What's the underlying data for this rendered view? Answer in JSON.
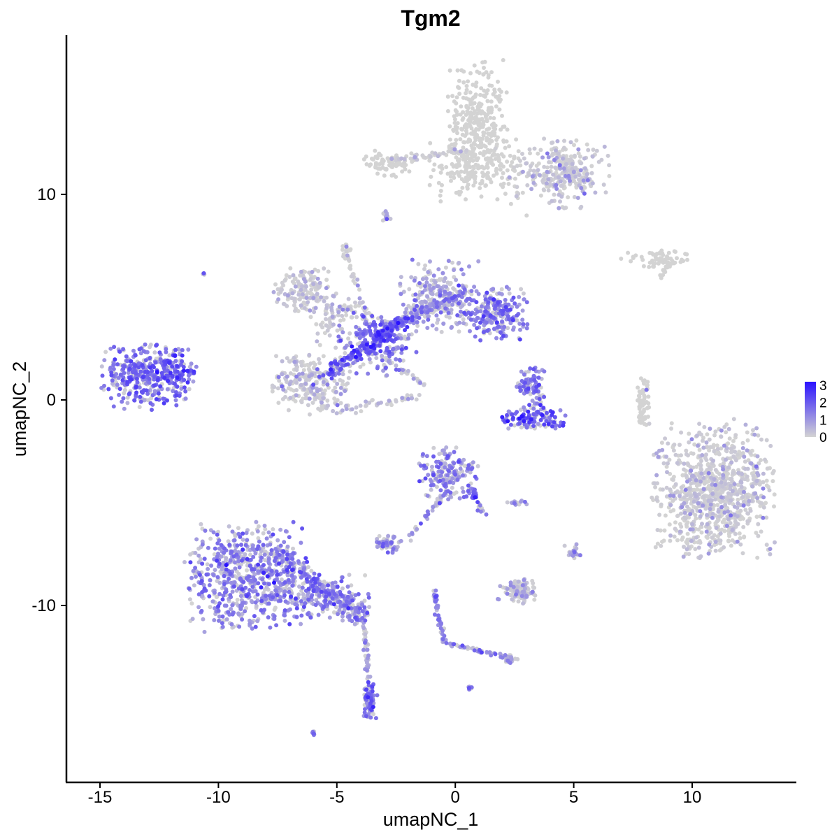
{
  "chart_data": {
    "type": "scatter",
    "title": "Tgm2",
    "xlabel": "umapNC_1",
    "ylabel": "umapNC_2",
    "xlim": [
      -16.5,
      14.5
    ],
    "ylim": [
      -18.5,
      17.5
    ],
    "x_ticks": [
      -15,
      -10,
      -5,
      0,
      5,
      10
    ],
    "x_tick_labels": [
      "-15",
      "-10",
      "-5",
      "0",
      "5",
      "10"
    ],
    "y_ticks": [
      -10,
      0,
      10
    ],
    "y_tick_labels": [
      "-10",
      "0",
      "10"
    ],
    "grid": false,
    "legend_position": "right",
    "color_scale": {
      "low": "#d3d3d3",
      "high": "#2a12ff",
      "min": 0,
      "max": 3.2,
      "labels": [
        "3",
        "2",
        "1",
        "0"
      ],
      "label_values": [
        3,
        2,
        1,
        0
      ]
    },
    "clusters": [
      {
        "cx": 1.0,
        "cy": 13.6,
        "sx": 0.6,
        "sy": 1.4,
        "n": 300,
        "expr": 0.0
      },
      {
        "cx": 4.4,
        "cy": 11.0,
        "sx": 1.0,
        "sy": 0.8,
        "n": 240,
        "expr": 0.05
      },
      {
        "cx": 0.8,
        "cy": 11.2,
        "sx": 0.9,
        "sy": 0.7,
        "n": 160,
        "expr": 0.0
      },
      {
        "cx": -2.8,
        "cy": 11.5,
        "sx": 0.5,
        "sy": 0.3,
        "n": 70,
        "expr": 0.0
      },
      {
        "cx": -6.4,
        "cy": 5.4,
        "sx": 0.6,
        "sy": 0.5,
        "n": 140,
        "expr": 0.05
      },
      {
        "cx": -5.2,
        "cy": 4.0,
        "sx": 0.6,
        "sy": 0.7,
        "n": 90,
        "expr": 0.25
      },
      {
        "cx": -6.1,
        "cy": 0.8,
        "sx": 0.8,
        "sy": 0.7,
        "n": 240,
        "expr": 0.15
      },
      {
        "cx": -3.2,
        "cy": 2.8,
        "sx": 0.8,
        "sy": 0.8,
        "n": 200,
        "expr": 1.4
      },
      {
        "cx": -0.8,
        "cy": 5.0,
        "sx": 0.7,
        "sy": 0.8,
        "n": 200,
        "expr": 0.8
      },
      {
        "cx": 1.6,
        "cy": 4.2,
        "sx": 0.7,
        "sy": 0.6,
        "n": 240,
        "expr": 1.4
      },
      {
        "cx": -13.0,
        "cy": 1.2,
        "sx": 0.9,
        "sy": 0.7,
        "n": 360,
        "expr": 1.6
      },
      {
        "cx": -11.7,
        "cy": 1.5,
        "sx": 0.4,
        "sy": 0.5,
        "n": 70,
        "expr": 1.8
      },
      {
        "cx": 3.2,
        "cy": 0.6,
        "sx": 0.3,
        "sy": 0.5,
        "n": 90,
        "expr": 1.5
      },
      {
        "cx": 3.2,
        "cy": -0.9,
        "sx": 0.7,
        "sy": 0.25,
        "n": 120,
        "expr": 1.8
      },
      {
        "cx": -0.3,
        "cy": -3.6,
        "sx": 0.6,
        "sy": 0.6,
        "n": 170,
        "expr": 1.3
      },
      {
        "cx": 10.9,
        "cy": -4.4,
        "sx": 1.2,
        "sy": 1.5,
        "n": 900,
        "expr": 0.02
      },
      {
        "cx": 8.0,
        "cy": -0.1,
        "sx": 0.15,
        "sy": 0.6,
        "n": 40,
        "expr": 0.0
      },
      {
        "cx": 8.6,
        "cy": 6.9,
        "sx": 0.7,
        "sy": 0.2,
        "n": 60,
        "expr": 0.0
      },
      {
        "cx": -8.8,
        "cy": -8.5,
        "sx": 1.2,
        "sy": 1.2,
        "n": 650,
        "expr": 1.3
      },
      {
        "cx": -5.8,
        "cy": -9.5,
        "sx": 0.9,
        "sy": 0.5,
        "n": 160,
        "expr": 1.1
      },
      {
        "cx": -4.3,
        "cy": -10.1,
        "sx": 0.4,
        "sy": 0.3,
        "n": 40,
        "expr": 0.5
      },
      {
        "cx": -3.6,
        "cy": -14.6,
        "sx": 0.15,
        "sy": 0.5,
        "n": 80,
        "expr": 1.6
      },
      {
        "cx": -2.8,
        "cy": -7.0,
        "sx": 0.3,
        "sy": 0.2,
        "n": 50,
        "expr": 1.0
      },
      {
        "cx": 2.7,
        "cy": -9.3,
        "sx": 0.4,
        "sy": 0.25,
        "n": 90,
        "expr": 0.4
      },
      {
        "cx": 2.6,
        "cy": -5.0,
        "sx": 0.25,
        "sy": 0.05,
        "n": 15,
        "expr": 0.7
      },
      {
        "cx": 5.0,
        "cy": -7.4,
        "sx": 0.2,
        "sy": 0.2,
        "n": 20,
        "expr": 0.8
      },
      {
        "cx": 2.3,
        "cy": -12.6,
        "sx": 0.2,
        "sy": 0.1,
        "n": 20,
        "expr": 1.0
      },
      {
        "cx": 0.6,
        "cy": -14.0,
        "sx": 0.05,
        "sy": 0.05,
        "n": 8,
        "expr": 1.3
      },
      {
        "cx": -6.0,
        "cy": -16.2,
        "sx": 0.05,
        "sy": 0.05,
        "n": 8,
        "expr": 1.5
      },
      {
        "cx": -10.6,
        "cy": 6.1,
        "sx": 0.03,
        "sy": 0.03,
        "n": 4,
        "expr": 0.8
      },
      {
        "cx": -2.9,
        "cy": 8.9,
        "sx": 0.1,
        "sy": 0.2,
        "n": 15,
        "expr": 0.5
      },
      {
        "cx": -4.6,
        "cy": 7.4,
        "sx": 0.1,
        "sy": 0.1,
        "n": 10,
        "expr": 0.0
      }
    ],
    "branches": [
      {
        "from": [
          -5.5,
          1.2
        ],
        "to": [
          -2.0,
          4.0
        ],
        "n": 220,
        "spread": 0.35,
        "expr": 2.0
      },
      {
        "from": [
          -2.0,
          4.0
        ],
        "to": [
          0.4,
          5.2
        ],
        "n": 120,
        "spread": 0.4,
        "expr": 1.2
      },
      {
        "from": [
          -4.7,
          7.4
        ],
        "to": [
          -3.6,
          3.5
        ],
        "n": 40,
        "spread": 0.15,
        "expr": 0.1
      },
      {
        "from": [
          -3.2,
          2.2
        ],
        "to": [
          -1.3,
          0.7
        ],
        "n": 30,
        "spread": 0.08,
        "expr": 0.3
      },
      {
        "from": [
          0.6,
          12.2
        ],
        "to": [
          -2.7,
          11.6
        ],
        "n": 50,
        "spread": 0.15,
        "expr": 0.05
      },
      {
        "from": [
          4.2,
          12.0
        ],
        "to": [
          5.5,
          10.5
        ],
        "n": 80,
        "spread": 0.35,
        "expr": 0.05
      },
      {
        "from": [
          -7.3,
          -7.6
        ],
        "to": [
          -3.9,
          -10.6
        ],
        "n": 180,
        "spread": 0.45,
        "expr": 1.4
      },
      {
        "from": [
          -3.9,
          -10.6
        ],
        "to": [
          -3.6,
          -14.0
        ],
        "n": 45,
        "spread": 0.1,
        "expr": 0.6
      },
      {
        "from": [
          -0.4,
          -4.5
        ],
        "to": [
          -2.0,
          -6.7
        ],
        "n": 40,
        "spread": 0.12,
        "expr": 1.0
      },
      {
        "from": [
          0.6,
          -4.3
        ],
        "to": [
          1.2,
          -5.6
        ],
        "n": 30,
        "spread": 0.15,
        "expr": 1.6
      },
      {
        "from": [
          -0.9,
          -9.2
        ],
        "to": [
          -0.5,
          -11.8
        ],
        "n": 50,
        "spread": 0.12,
        "expr": 1.3
      },
      {
        "from": [
          -0.5,
          -11.8
        ],
        "to": [
          2.5,
          -12.6
        ],
        "n": 50,
        "spread": 0.1,
        "expr": 1.0
      },
      {
        "from": [
          2.9,
          -8.6
        ],
        "to": [
          2.9,
          -9.9
        ],
        "n": 25,
        "spread": 0.08,
        "expr": 0.4
      },
      {
        "from": [
          7.9,
          1.1
        ],
        "to": [
          7.8,
          -1.2
        ],
        "n": 30,
        "spread": 0.1,
        "expr": 0.0
      },
      {
        "from": [
          9.1,
          6.9
        ],
        "to": [
          8.6,
          5.8
        ],
        "n": 12,
        "spread": 0.08,
        "expr": 0.0
      },
      {
        "from": [
          -1.4,
          0.2
        ],
        "to": [
          -4.8,
          -0.5
        ],
        "n": 40,
        "spread": 0.2,
        "expr": 0.2
      }
    ]
  }
}
